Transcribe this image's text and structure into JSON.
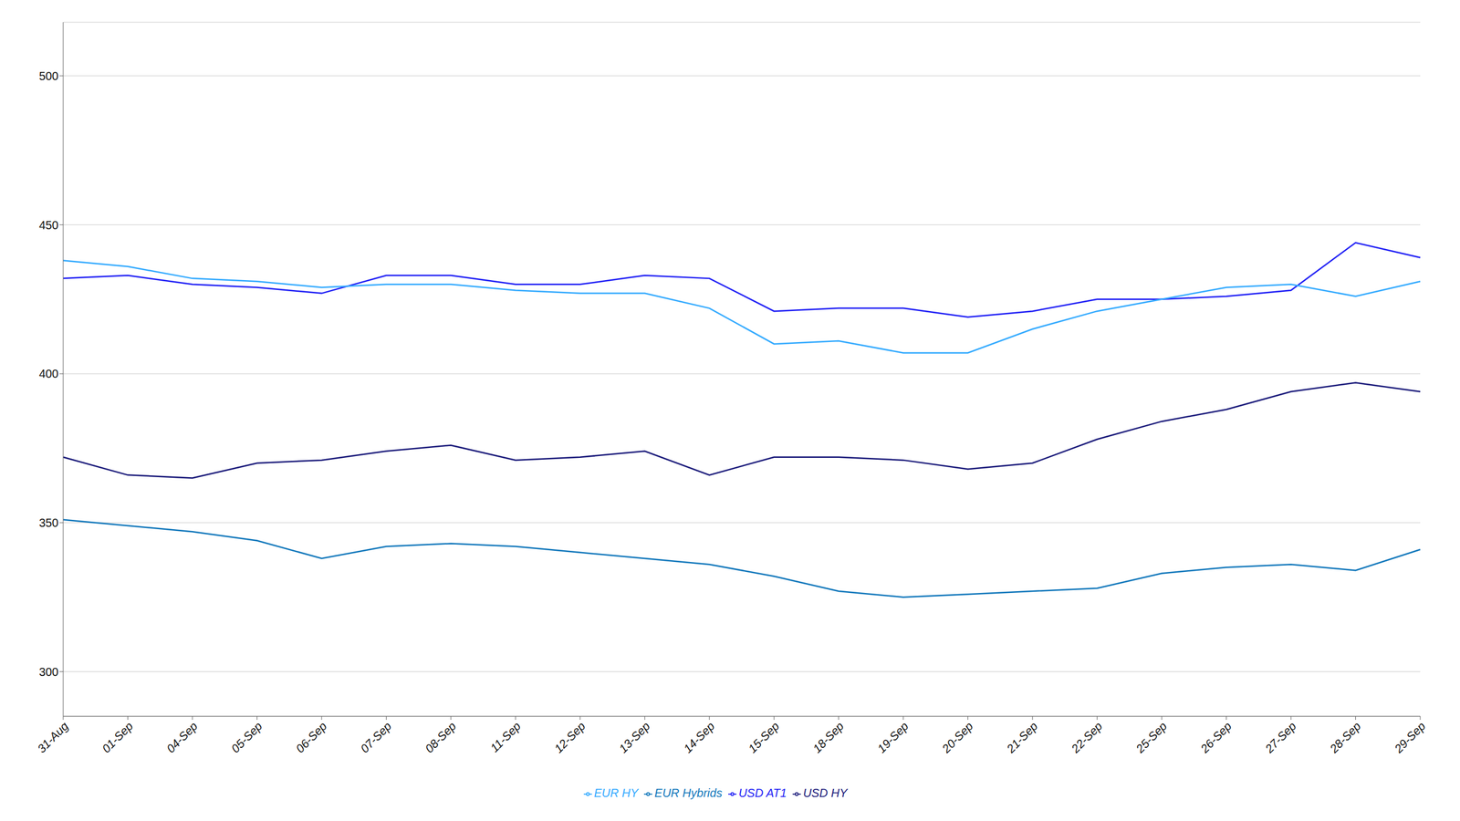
{
  "chart_data": {
    "type": "line",
    "categories": [
      "31-Aug",
      "01-Sep",
      "04-Sep",
      "05-Sep",
      "06-Sep",
      "07-Sep",
      "08-Sep",
      "11-Sep",
      "12-Sep",
      "13-Sep",
      "14-Sep",
      "15-Sep",
      "18-Sep",
      "19-Sep",
      "20-Sep",
      "21-Sep",
      "22-Sep",
      "25-Sep",
      "26-Sep",
      "27-Sep",
      "28-Sep",
      "29-Sep"
    ],
    "series": [
      {
        "name": "USD HY",
        "color": "#1a1a7a",
        "values": [
          372,
          366,
          365,
          370,
          371,
          374,
          376,
          371,
          372,
          374,
          366,
          372,
          372,
          371,
          368,
          370,
          378,
          384,
          388,
          394,
          397,
          394
        ]
      },
      {
        "name": "USD AT1",
        "color": "#1f1ff5",
        "values": [
          432,
          433,
          430,
          429,
          427,
          433,
          433,
          430,
          430,
          433,
          432,
          421,
          422,
          422,
          419,
          421,
          425,
          425,
          426,
          428,
          444,
          439
        ]
      },
      {
        "name": "EUR HY",
        "color": "#33aaff",
        "values": [
          438,
          436,
          432,
          431,
          429,
          430,
          430,
          428,
          427,
          427,
          422,
          410,
          411,
          407,
          407,
          415,
          421,
          425,
          429,
          430,
          426,
          431
        ]
      },
      {
        "name": "EUR Hybrids",
        "color": "#1177bb",
        "values": [
          351,
          349,
          347,
          344,
          338,
          342,
          343,
          342,
          340,
          338,
          336,
          332,
          327,
          325,
          326,
          327,
          328,
          333,
          335,
          336,
          334,
          341
        ]
      }
    ],
    "ylim": [
      285,
      518
    ],
    "yticks": [
      300,
      350,
      400,
      450,
      500
    ],
    "grid": true,
    "legend": "bottom"
  }
}
